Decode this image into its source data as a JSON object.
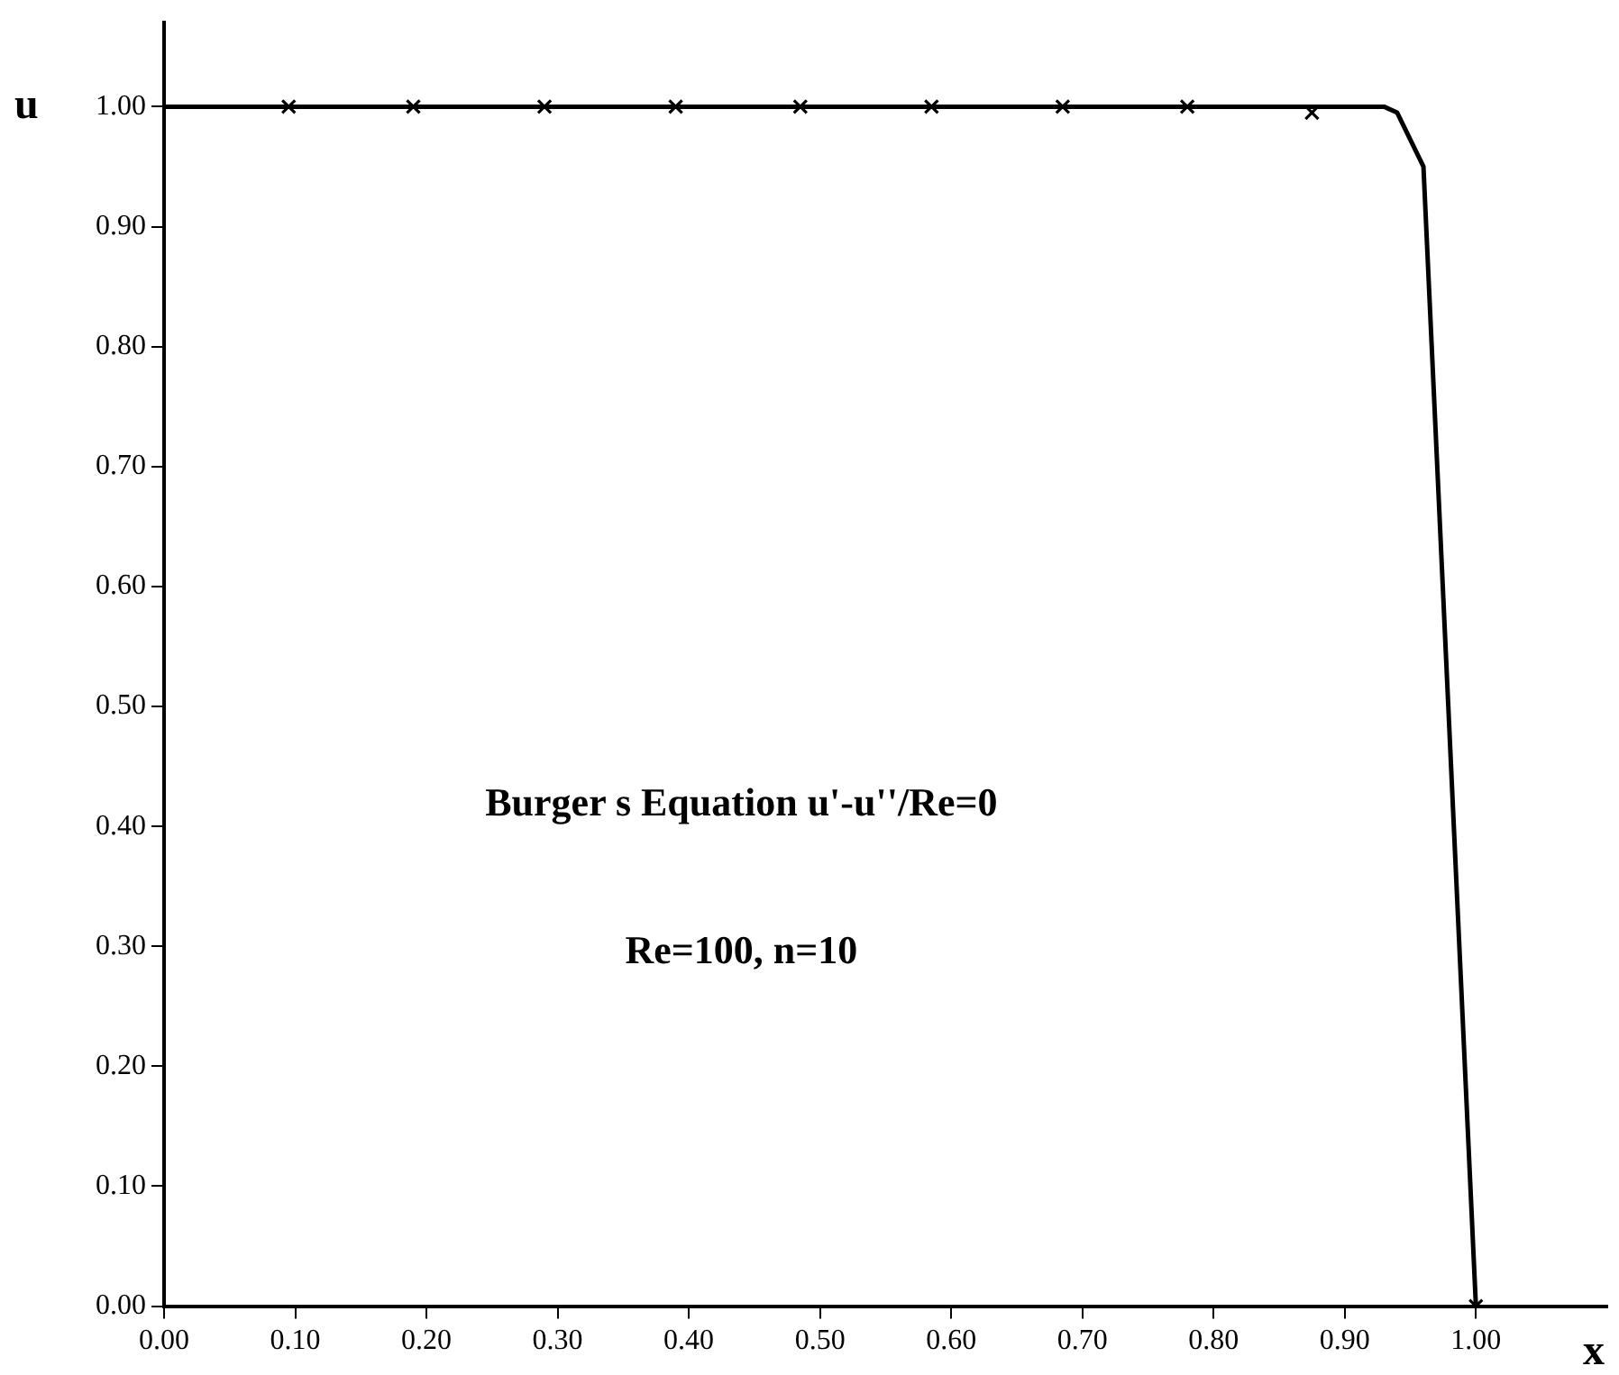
{
  "chart_data": {
    "type": "line",
    "xlabel": "x",
    "ylabel": "u",
    "annotations": [
      "Burger s Equation u'-u''/Re=0",
      "Re=100, n=10"
    ],
    "series": [
      {
        "color": "#000000",
        "marker": "none",
        "x": [
          0,
          0.93,
          0.94,
          0.96,
          1.0
        ],
        "values": [
          1.0,
          1.0,
          0.995,
          0.95,
          0
        ]
      },
      {
        "type": "scatter",
        "color": "#000000",
        "marker": "cross",
        "x": [
          0.095,
          0.19,
          0.29,
          0.39,
          0.485,
          0.585,
          0.685,
          0.78,
          0.875,
          1.0
        ],
        "values": [
          1,
          1,
          1,
          1,
          1,
          1,
          1,
          1,
          0.995,
          0
        ]
      }
    ],
    "xlim": [
      0,
      1.1
    ],
    "ylim": [
      0,
      1.07
    ],
    "xticks": [
      {
        "value": 0,
        "label": "0.00"
      },
      {
        "value": 0.1,
        "label": "0.10"
      },
      {
        "value": 0.2,
        "label": "0.20"
      },
      {
        "value": 0.3,
        "label": "0.30"
      },
      {
        "value": 0.4,
        "label": "0.40"
      },
      {
        "value": 0.5,
        "label": "0.50"
      },
      {
        "value": 0.6,
        "label": "0.60"
      },
      {
        "value": 0.7,
        "label": "0.70"
      },
      {
        "value": 0.8,
        "label": "0.80"
      },
      {
        "value": 0.9,
        "label": "0.90"
      },
      {
        "value": 1,
        "label": "1.00"
      }
    ],
    "yticks": [
      {
        "value": 0,
        "label": "0.00"
      },
      {
        "value": 0.1,
        "label": "0.10"
      },
      {
        "value": 0.2,
        "label": "0.20"
      },
      {
        "value": 0.3,
        "label": "0.30"
      },
      {
        "value": 0.4,
        "label": "0.40"
      },
      {
        "value": 0.5,
        "label": "0.50"
      },
      {
        "value": 0.6,
        "label": "0.60"
      },
      {
        "value": 0.7,
        "label": "0.70"
      },
      {
        "value": 0.8,
        "label": "0.80"
      },
      {
        "value": 0.9,
        "label": "0.90"
      },
      {
        "value": 1,
        "label": "1.00"
      }
    ],
    "grid": false,
    "legend": false
  }
}
